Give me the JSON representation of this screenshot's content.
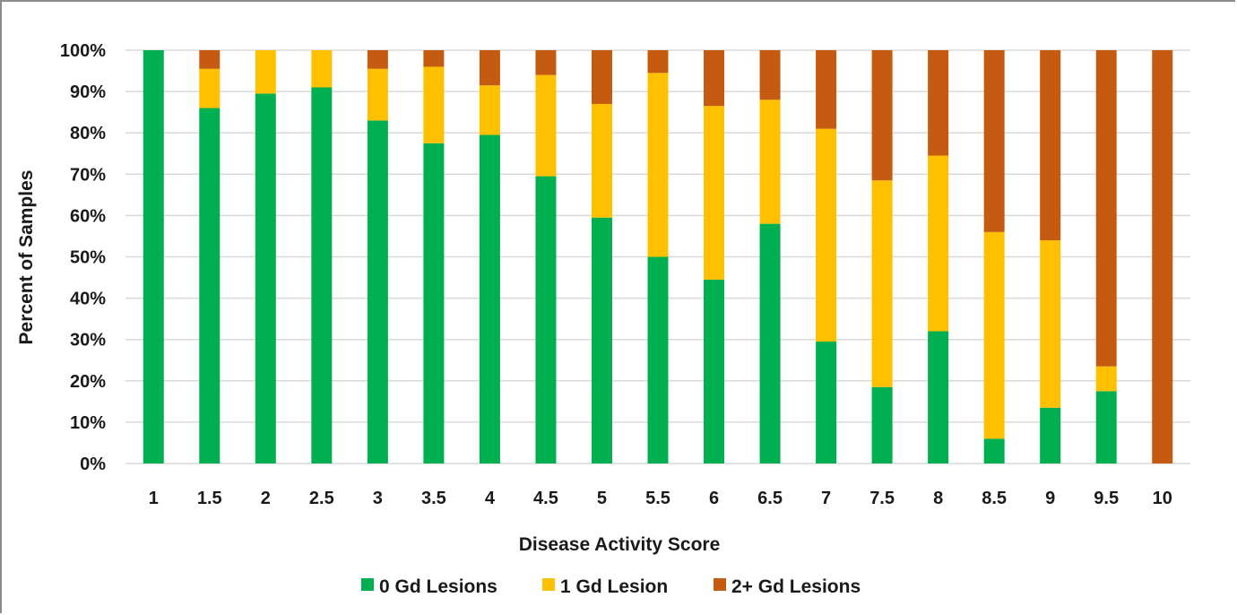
{
  "chart_data": {
    "type": "bar",
    "stacked": true,
    "percent": true,
    "xlabel": "Disease Activity Score",
    "ylabel": "Percent of Samples",
    "ylim": [
      0,
      100
    ],
    "ytick_labels": [
      "0%",
      "10%",
      "20%",
      "30%",
      "40%",
      "50%",
      "60%",
      "70%",
      "80%",
      "90%",
      "100%"
    ],
    "grid": true,
    "legend_position": "bottom",
    "categories": [
      "1",
      "1.5",
      "2",
      "2.5",
      "3",
      "3.5",
      "4",
      "4.5",
      "5",
      "5.5",
      "6",
      "6.5",
      "7",
      "7.5",
      "8",
      "8.5",
      "9",
      "9.5",
      "10"
    ],
    "series": [
      {
        "name": "0 Gd Lesions",
        "color": "#00b050",
        "values": [
          100,
          86,
          89.5,
          91,
          83,
          77.5,
          79.5,
          69.5,
          59.5,
          50,
          44.5,
          58,
          29.5,
          18.5,
          32,
          6,
          13.5,
          17.5,
          0
        ]
      },
      {
        "name": "1 Gd Lesion",
        "color": "#ffc000",
        "values": [
          0,
          9.5,
          10.5,
          9,
          12.5,
          18.5,
          12,
          24.5,
          27.5,
          44.5,
          42,
          30,
          51.5,
          50,
          42.5,
          50,
          40.5,
          6,
          0
        ]
      },
      {
        "name": "2+ Gd Lesions",
        "color": "#c55a11",
        "values": [
          0,
          4.5,
          0,
          0,
          4.5,
          4,
          8.5,
          6,
          13,
          5.5,
          13.5,
          12,
          19,
          31.5,
          25.5,
          44,
          46,
          76.5,
          100
        ]
      }
    ]
  }
}
